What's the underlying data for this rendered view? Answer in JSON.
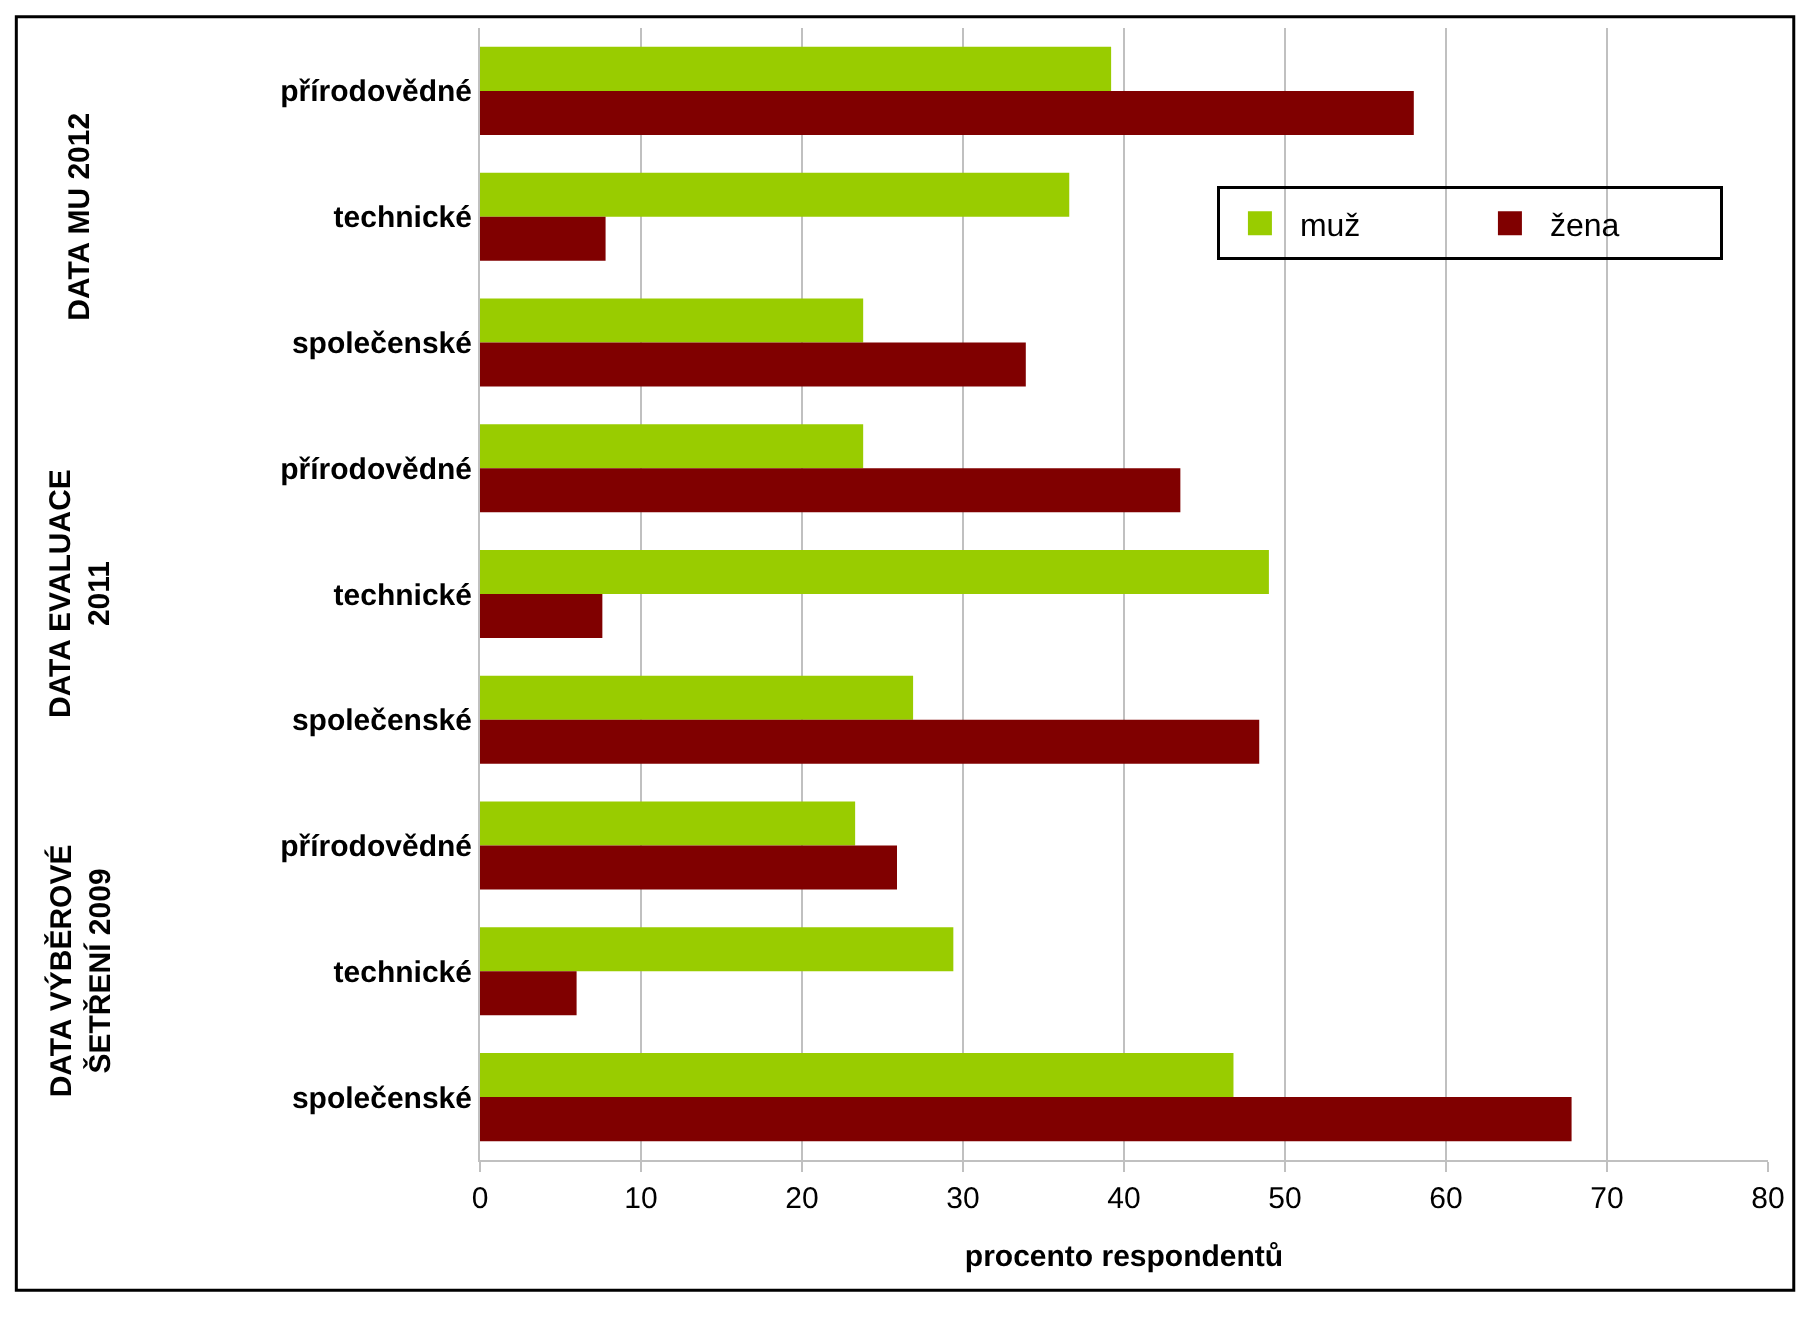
{
  "chart_data": {
    "type": "bar",
    "orientation": "horizontal",
    "xlabel": "procento respondentů",
    "categories": [
      "přírodovědné",
      "technické",
      "společenské",
      "přírodovědné",
      "technické",
      "společenské",
      "přírodovědné",
      "technické",
      "společenské"
    ],
    "series": [
      {
        "name": "muž",
        "color": "#99cc00",
        "values": [
          39.2,
          36.6,
          23.8,
          23.8,
          49.0,
          26.9,
          23.3,
          29.4,
          46.8
        ]
      },
      {
        "name": "žena",
        "color": "#800000",
        "values": [
          58.0,
          7.8,
          33.9,
          43.5,
          7.6,
          48.4,
          25.9,
          6.0,
          67.8
        ]
      }
    ],
    "annotations": [
      "DATA MU 2012",
      "DATA EVALUACE\n2011",
      "DATA VÝBĚROVÉ\nŠETŘENÍ 2009"
    ],
    "xlim": [
      0,
      80
    ],
    "xticks": [
      0,
      10,
      20,
      30,
      40,
      50,
      60,
      70,
      80
    ],
    "grid": "x",
    "legend": "top right"
  }
}
